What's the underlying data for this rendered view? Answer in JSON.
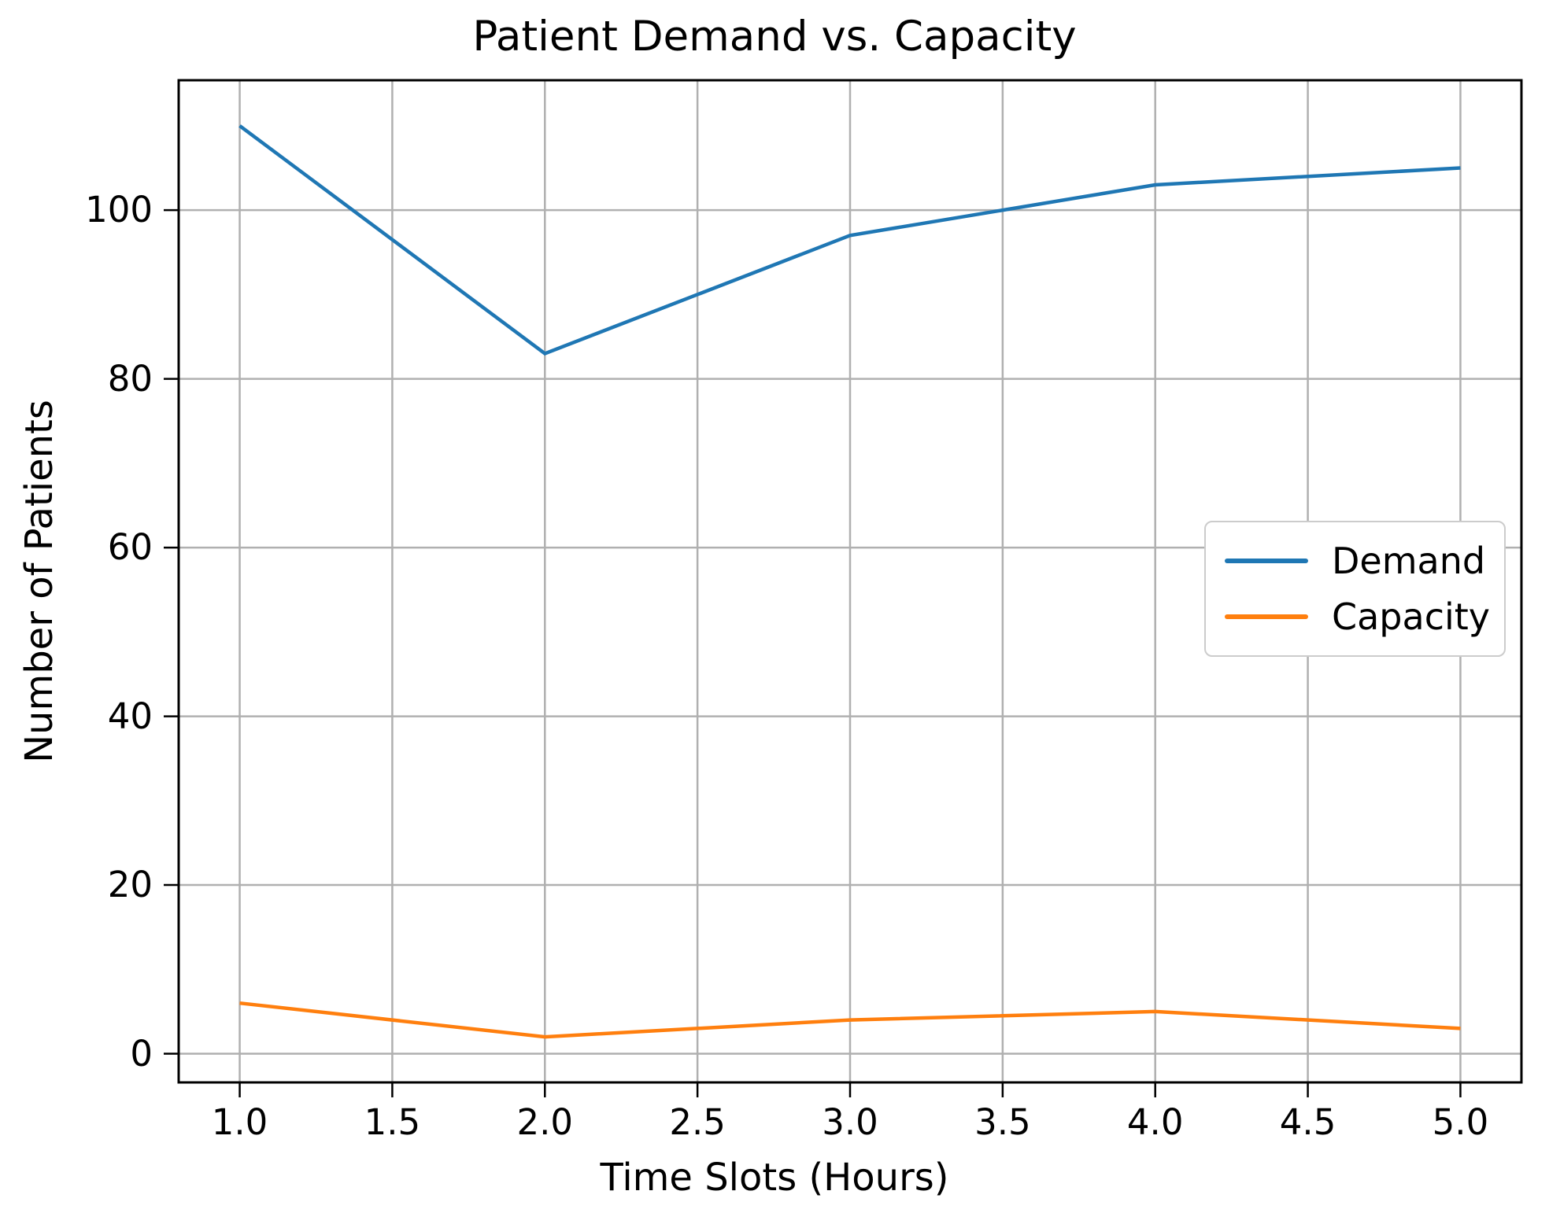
{
  "chart_data": {
    "type": "line",
    "title": "Patient Demand vs. Capacity",
    "xlabel": "Time Slots (Hours)",
    "ylabel": "Number of Patients",
    "x": [
      1,
      2,
      3,
      4,
      5
    ],
    "series": [
      {
        "name": "Demand",
        "color": "#1f77b4",
        "values": [
          110,
          83,
          97,
          103,
          105
        ]
      },
      {
        "name": "Capacity",
        "color": "#ff7f0e",
        "values": [
          6,
          2,
          4,
          5,
          3
        ]
      }
    ],
    "xticks": [
      1.0,
      1.5,
      2.0,
      2.5,
      3.0,
      3.5,
      4.0,
      4.5,
      5.0
    ],
    "xtick_labels": [
      "1.0",
      "1.5",
      "2.0",
      "2.5",
      "3.0",
      "3.5",
      "4.0",
      "4.5",
      "5.0"
    ],
    "yticks": [
      0,
      20,
      40,
      60,
      80,
      100
    ],
    "ytick_labels": [
      "0",
      "20",
      "40",
      "60",
      "80",
      "100"
    ],
    "xlim": [
      0.8,
      5.2
    ],
    "ylim": [
      -3.4,
      115.4
    ],
    "grid": true,
    "grid_color": "#b0b0b0",
    "spine_color": "#000000",
    "legend_position": "center right"
  }
}
